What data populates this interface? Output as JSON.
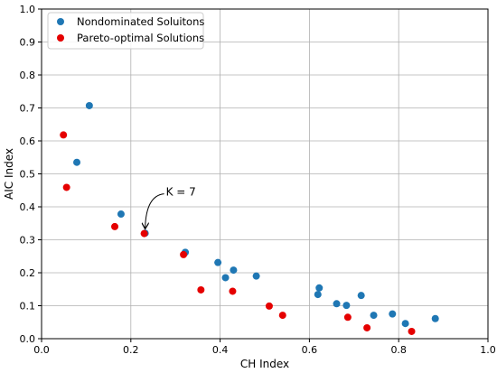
{
  "chart_data": {
    "type": "scatter",
    "xlabel": "CH Index",
    "ylabel": "AIC Index",
    "xlim": [
      0,
      1
    ],
    "ylim": [
      0,
      1
    ],
    "xticks": [
      "0.0",
      "0.2",
      "0.4",
      "0.6",
      "0.8",
      "1.0"
    ],
    "yticks": [
      "0.0",
      "0.1",
      "0.2",
      "0.3",
      "0.4",
      "0.5",
      "0.6",
      "0.7",
      "0.8",
      "0.9",
      "1.0"
    ],
    "grid": true,
    "legend_position": "top-left",
    "series": [
      {
        "name": "Nondominated Soluitons",
        "color": "#1f77b4",
        "points": [
          {
            "x": 0.107,
            "y": 0.707
          },
          {
            "x": 0.079,
            "y": 0.535
          },
          {
            "x": 0.178,
            "y": 0.378
          },
          {
            "x": 0.232,
            "y": 0.32
          },
          {
            "x": 0.322,
            "y": 0.262
          },
          {
            "x": 0.395,
            "y": 0.231
          },
          {
            "x": 0.43,
            "y": 0.208
          },
          {
            "x": 0.412,
            "y": 0.185
          },
          {
            "x": 0.481,
            "y": 0.19
          },
          {
            "x": 0.622,
            "y": 0.154
          },
          {
            "x": 0.619,
            "y": 0.134
          },
          {
            "x": 0.661,
            "y": 0.106
          },
          {
            "x": 0.683,
            "y": 0.101
          },
          {
            "x": 0.716,
            "y": 0.131
          },
          {
            "x": 0.744,
            "y": 0.071
          },
          {
            "x": 0.786,
            "y": 0.075
          },
          {
            "x": 0.815,
            "y": 0.046
          },
          {
            "x": 0.882,
            "y": 0.061
          }
        ]
      },
      {
        "name": "Pareto-optimal Solutions",
        "color": "#e50000",
        "points": [
          {
            "x": 0.049,
            "y": 0.618
          },
          {
            "x": 0.056,
            "y": 0.459
          },
          {
            "x": 0.164,
            "y": 0.34
          },
          {
            "x": 0.23,
            "y": 0.319
          },
          {
            "x": 0.318,
            "y": 0.255
          },
          {
            "x": 0.357,
            "y": 0.148
          },
          {
            "x": 0.428,
            "y": 0.144
          },
          {
            "x": 0.51,
            "y": 0.099
          },
          {
            "x": 0.54,
            "y": 0.071
          },
          {
            "x": 0.686,
            "y": 0.065
          },
          {
            "x": 0.729,
            "y": 0.033
          },
          {
            "x": 0.829,
            "y": 0.022
          }
        ]
      }
    ],
    "annotations": [
      {
        "text": "K = 7",
        "x": 0.23,
        "y": 0.319
      }
    ]
  }
}
